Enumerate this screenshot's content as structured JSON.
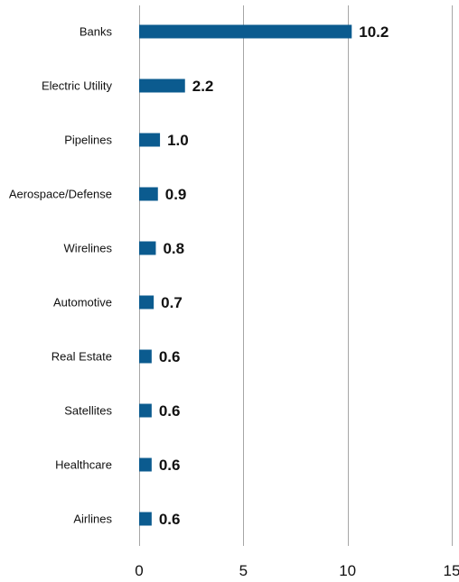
{
  "chart_data": {
    "type": "bar",
    "orientation": "horizontal",
    "categories": [
      "Banks",
      "Electric Utility",
      "Pipelines",
      "Aerospace/Defense",
      "Wirelines",
      "Automotive",
      "Real Estate",
      "Satellites",
      "Healthcare",
      "Airlines"
    ],
    "values": [
      10.2,
      2.2,
      1.0,
      0.9,
      0.8,
      0.7,
      0.6,
      0.6,
      0.6,
      0.6
    ],
    "value_labels": [
      "10.2",
      "2.2",
      "1.0",
      "0.9",
      "0.8",
      "0.7",
      "0.6",
      "0.6",
      "0.6",
      "0.6"
    ],
    "title": "",
    "xlabel": "",
    "ylabel": "",
    "xlim": [
      0,
      15
    ],
    "x_ticks": [
      0,
      5,
      10,
      15
    ],
    "x_tick_labels": [
      "0",
      "5",
      "10",
      "15"
    ],
    "grid": "vertical",
    "legend": "none",
    "bar_color": "#0b5b8f",
    "grid_color": "#a6a6a6"
  }
}
